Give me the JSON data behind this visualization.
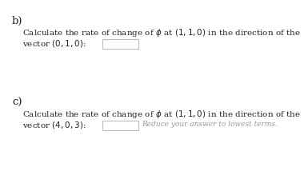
{
  "bg_color": "#ffffff",
  "label_b": "b)",
  "label_c": "c)",
  "line1_b": "Calculate the rate of change of $\\phi$ at $(1, 1, 0)$ in the direction of the",
  "line2_b": "vector $(0, 1, 0)$:",
  "line1_c": "Calculate the rate of change of $\\phi$ at $(1, 1, 0)$ in the direction of the",
  "line2_c": "vector $(4, 0, 3)$:",
  "hint_c": "Reduce your answer to lowest terms.",
  "text_color": "#222222",
  "hint_color": "#999999",
  "box_edge_color": "#bbbbbb",
  "font_size": 7.5,
  "label_font_size": 9.5,
  "hint_font_size": 6.5
}
